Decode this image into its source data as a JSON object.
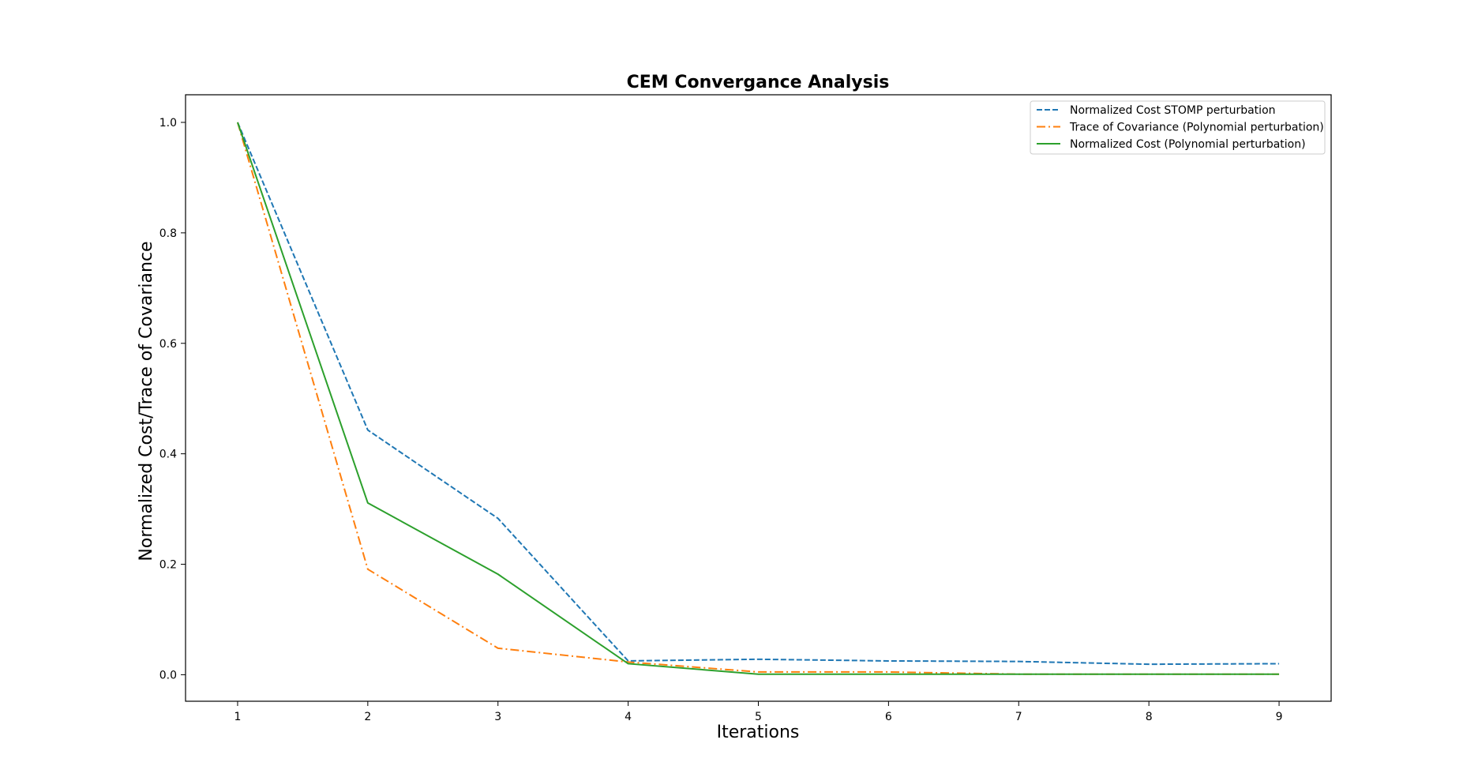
{
  "chart_data": {
    "type": "line",
    "title": "CEM Convergance Analysis",
    "xlabel": "Iterations",
    "ylabel": "Normalized Cost/Trace of Covariance",
    "x": [
      1,
      2,
      3,
      4,
      5,
      6,
      7,
      8,
      9
    ],
    "xlim": [
      0.6,
      9.4
    ],
    "ylim": [
      -0.048,
      1.05
    ],
    "xticks": [
      "1",
      "2",
      "3",
      "4",
      "5",
      "6",
      "7",
      "8",
      "9"
    ],
    "yticks": [
      "0.0",
      "0.2",
      "0.4",
      "0.6",
      "0.8",
      "1.0"
    ],
    "grid": false,
    "legend_position": "top-right",
    "series": [
      {
        "name": "Normalized Cost STOMP perturbation",
        "color": "#1f77b4",
        "style": "dashed",
        "values": [
          1.0,
          0.443,
          0.283,
          0.025,
          0.028,
          0.025,
          0.024,
          0.019,
          0.02
        ]
      },
      {
        "name": "Trace of Covariance (Polynomial perturbation)",
        "color": "#ff7f0e",
        "style": "dashdot",
        "values": [
          1.0,
          0.191,
          0.048,
          0.023,
          0.005,
          0.005,
          0.001,
          0.001,
          0.001
        ]
      },
      {
        "name": "Normalized Cost (Polynomial perturbation)",
        "color": "#2ca02c",
        "style": "solid",
        "values": [
          1.0,
          0.311,
          0.182,
          0.02,
          0.001,
          0.001,
          0.001,
          0.001,
          0.001
        ]
      }
    ]
  }
}
